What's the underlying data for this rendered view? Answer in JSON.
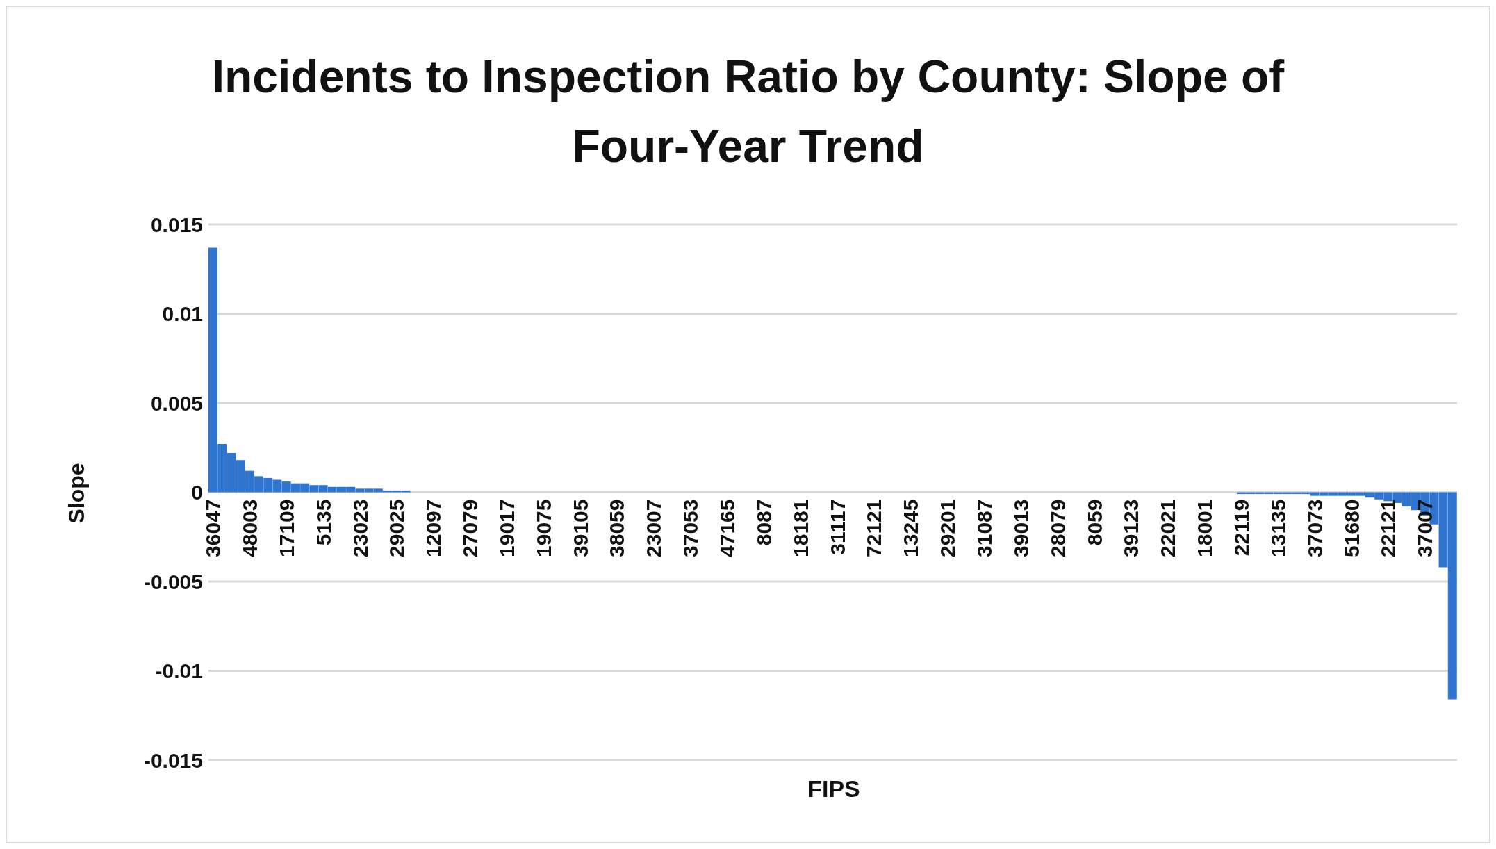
{
  "chart_data": {
    "type": "bar",
    "title": "Incidents to Inspection Ratio by County: Slope of Four-Year Trend",
    "xlabel": "FIPS",
    "ylabel": "Slope",
    "categories": [
      "36047",
      null,
      null,
      null,
      "48003",
      null,
      null,
      null,
      "17109",
      null,
      null,
      null,
      "5135",
      null,
      null,
      null,
      "23023",
      null,
      null,
      null,
      "29025",
      null,
      null,
      null,
      "12097",
      null,
      null,
      null,
      "27079",
      null,
      null,
      null,
      "19017",
      null,
      null,
      null,
      "19075",
      null,
      null,
      null,
      "39105",
      null,
      null,
      null,
      "38059",
      null,
      null,
      null,
      "23007",
      null,
      null,
      null,
      "37053",
      null,
      null,
      null,
      "47165",
      null,
      null,
      null,
      "8087",
      null,
      null,
      null,
      "18181",
      null,
      null,
      null,
      "31117",
      null,
      null,
      null,
      "72121",
      null,
      null,
      null,
      "13245",
      null,
      null,
      null,
      "29201",
      null,
      null,
      null,
      "31087",
      null,
      null,
      null,
      "39013",
      null,
      null,
      null,
      "28079",
      null,
      null,
      null,
      "8059",
      null,
      null,
      null,
      "39123",
      null,
      null,
      null,
      "22021",
      null,
      null,
      null,
      "18001",
      null,
      null,
      null,
      "22119",
      null,
      null,
      null,
      "13135",
      null,
      null,
      null,
      "37073",
      null,
      null,
      null,
      "51680",
      null,
      null,
      null,
      "22121",
      null,
      null,
      null,
      "37007",
      null,
      null,
      null
    ],
    "values": [
      0.0137,
      0.0027,
      0.0022,
      0.0018,
      0.0012,
      0.0009,
      0.0008,
      0.0007,
      0.0006,
      0.0005,
      0.0005,
      0.0004,
      0.0004,
      0.0003,
      0.0003,
      0.0003,
      0.0002,
      0.0002,
      0.0002,
      0.0001,
      0.0001,
      0.0001,
      0,
      0,
      0,
      0,
      0,
      0,
      0,
      0,
      0,
      0,
      0,
      0,
      0,
      0,
      0,
      0,
      0,
      0,
      0,
      0,
      0,
      0,
      0,
      0,
      0,
      0,
      0,
      0,
      0,
      0,
      0,
      0,
      0,
      0,
      0,
      0,
      0,
      0,
      0,
      0,
      0,
      0,
      0,
      0,
      0,
      0,
      0,
      0,
      0,
      0,
      0,
      0,
      0,
      0,
      0,
      0,
      0,
      0,
      0,
      0,
      0,
      0,
      0,
      0,
      0,
      0,
      0,
      0,
      0,
      0,
      0,
      0,
      0,
      0,
      0,
      0,
      0,
      0,
      0,
      0,
      0,
      0,
      0,
      0,
      0,
      0,
      0,
      0,
      0,
      0,
      -0.0001,
      -0.0001,
      -0.0001,
      -0.0001,
      -0.0001,
      -0.0001,
      -0.0001,
      -0.0001,
      -0.0002,
      -0.0002,
      -0.0002,
      -0.0002,
      -0.0002,
      -0.0002,
      -0.0003,
      -0.0004,
      -0.0005,
      -0.0006,
      -0.0008,
      -0.001,
      -0.0013,
      -0.0018,
      -0.0042,
      -0.0116
    ],
    "color": "#2f75cf",
    "ylim": [
      -0.015,
      0.015
    ],
    "yticks": [
      -0.015,
      -0.01,
      -0.005,
      0,
      0.005,
      0.01,
      0.015
    ],
    "grid": "y",
    "legend": false
  }
}
